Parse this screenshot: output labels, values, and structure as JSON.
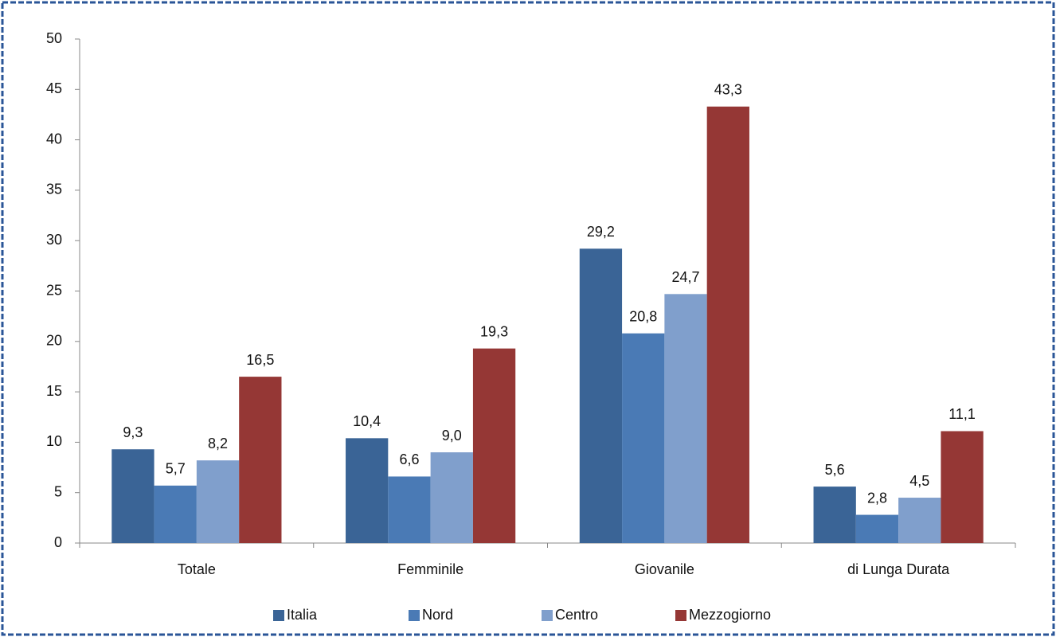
{
  "chart_data": {
    "type": "bar",
    "categories": [
      "Totale",
      "Femminile",
      "Giovanile",
      "di Lunga Durata"
    ],
    "series": [
      {
        "name": "Italia",
        "color": "#3a6496",
        "values": [
          9.3,
          10.4,
          29.2,
          5.6
        ],
        "value_labels": [
          "9,3",
          "10,4",
          "29,2",
          "5,6"
        ]
      },
      {
        "name": "Nord",
        "color": "#4a7ab5",
        "values": [
          5.7,
          6.6,
          20.8,
          2.8
        ],
        "value_labels": [
          "5,7",
          "6,6",
          "20,8",
          "2,8"
        ]
      },
      {
        "name": "Centro",
        "color": "#809fcc",
        "values": [
          8.2,
          9.0,
          24.7,
          4.5
        ],
        "value_labels": [
          "8,2",
          "9,0",
          "24,7",
          "4,5"
        ]
      },
      {
        "name": "Mezzogiorno",
        "color": "#953735",
        "values": [
          16.5,
          19.3,
          43.3,
          11.1
        ],
        "value_labels": [
          "16,5",
          "19,3",
          "43,3",
          "11,1"
        ]
      }
    ],
    "ylim": [
      0,
      50
    ],
    "yticks": [
      0,
      5,
      10,
      15,
      20,
      25,
      30,
      35,
      40,
      45,
      50
    ],
    "grid": false,
    "legend": "bottom"
  }
}
